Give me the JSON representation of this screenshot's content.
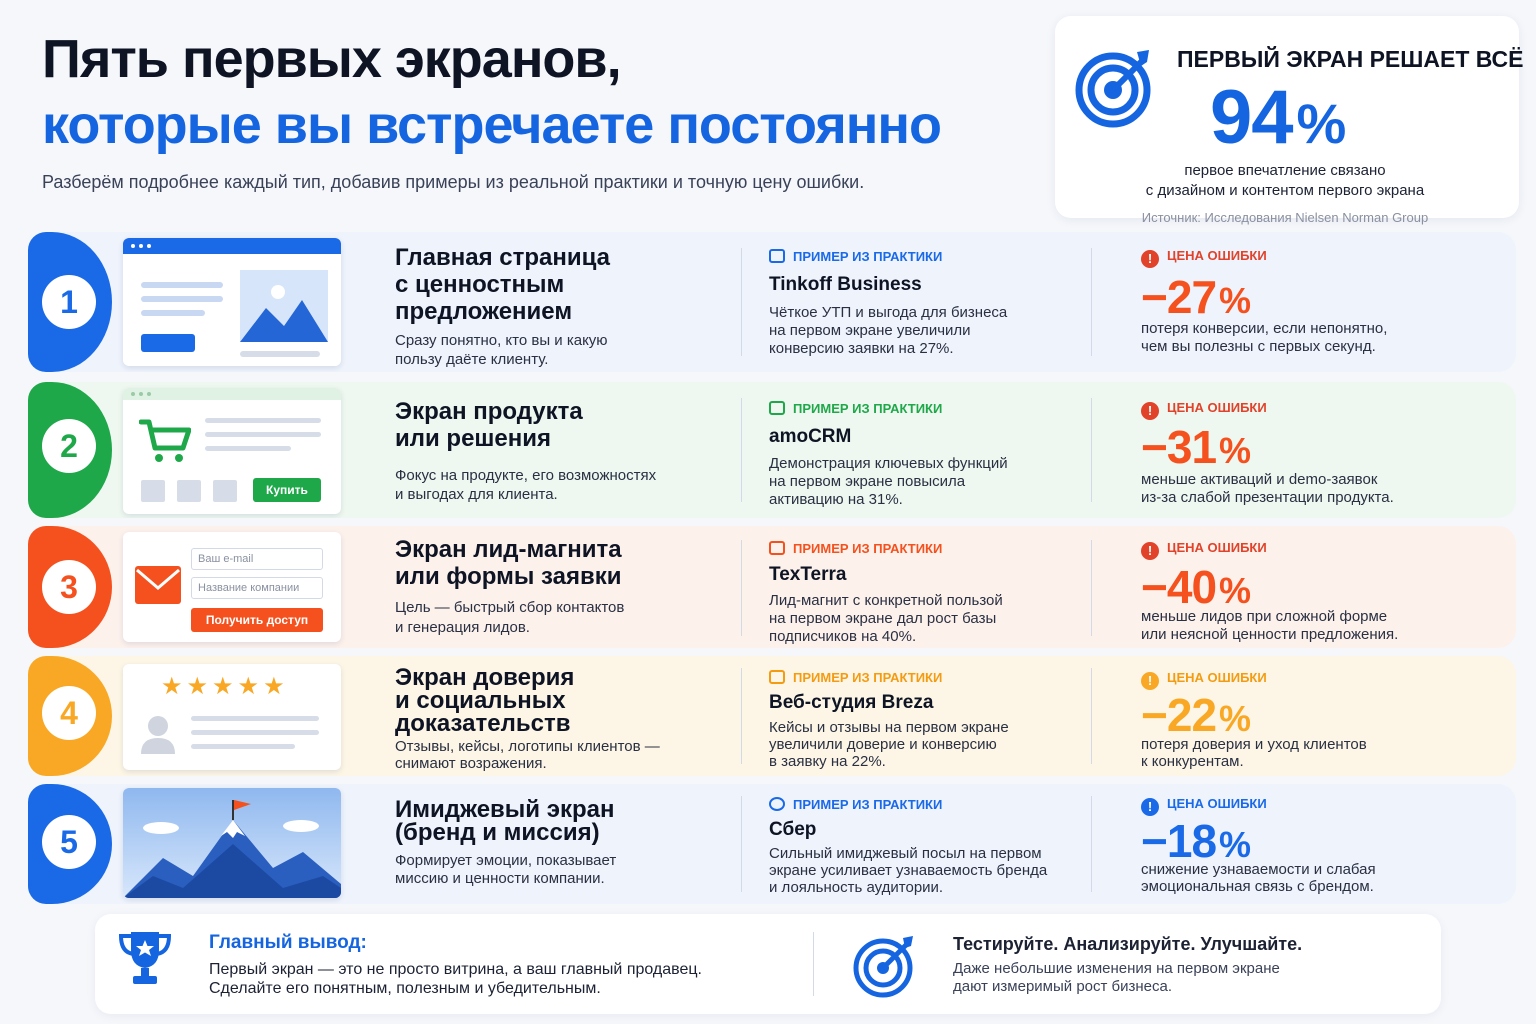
{
  "header": {
    "title_line1": "Пять первых экранов,",
    "title_line2": "которые вы встречаете постоянно",
    "subtitle": "Разберём подробнее каждый тип, добавив примеры из реальной практики и точную цену ошибки."
  },
  "stat": {
    "heading": "ПЕРВЫЙ ЭКРАН РЕШАЕТ ВСЁ",
    "value": "94",
    "unit": "%",
    "desc_line1": "первое впечатление связано",
    "desc_line2": "с дизайном и контентом первого экрана",
    "source": "Источник: Исследования Nielsen Norman Group",
    "icon": "target-icon"
  },
  "labels": {
    "example": "ПРИМЕР ИЗ ПРАКТИКИ",
    "error": "ЦЕНА ОШИБКИ"
  },
  "colors": {
    "blue": "#1a6ae8",
    "green": "#1fa84a",
    "orange": "#f4511e",
    "amber": "#f9a825",
    "red_value": "#f4511e"
  },
  "rows": [
    {
      "num": "1",
      "title_1": "Главная страница",
      "title_2": "с ценностным",
      "title_3": "предложением",
      "desc_1": "Сразу понятно, кто вы и какую",
      "desc_2": "пользу даёте клиенту.",
      "company": "Tinkoff Business",
      "ex_1": "Чёткое УТП и выгода для бизнеса",
      "ex_2": "на первом экране увеличили",
      "ex_3": "конверсию заявки на 27%.",
      "err_value": "−27",
      "err_1": "потеря конверсии, если непонятно,",
      "err_2": "чем вы полезны с первых секунд."
    },
    {
      "num": "2",
      "title_1": "Экран продукта",
      "title_2": "или решения",
      "desc_1": "Фокус на продукте, его возможностях",
      "desc_2": "и выгодах для клиента.",
      "buy": "Купить",
      "company": "amoCRM",
      "ex_1": "Демонстрация ключевых функций",
      "ex_2": "на первом экране повысила",
      "ex_3": "активацию на 31%.",
      "err_value": "−31",
      "err_1": "меньше активаций и demo-заявок",
      "err_2": "из-за слабой презентации продукта."
    },
    {
      "num": "3",
      "title_1": "Экран лид-магнита",
      "title_2": "или формы заявки",
      "desc_1": "Цель — быстрый сбор контактов",
      "desc_2": "и генерация лидов.",
      "email_ph": "Ваш e-mail",
      "company_ph": "Название компании",
      "cta": "Получить доступ",
      "company": "TexTerra",
      "ex_1": "Лид-магнит с конкретной пользой",
      "ex_2": "на первом экране дал рост базы",
      "ex_3": "подписчиков на 40%.",
      "err_value": "−40",
      "err_1": "меньше лидов при сложной форме",
      "err_2": "или неясной ценности предложения."
    },
    {
      "num": "4",
      "title_1": "Экран доверия",
      "title_2": "и социальных",
      "title_3": "доказательств",
      "desc_1": "Отзывы, кейсы, логотипы клиентов —",
      "desc_2": "снимают возражения.",
      "stars": "★★★★★",
      "company": "Веб-студия Breza",
      "ex_1": "Кейсы и отзывы на первом экране",
      "ex_2": "увеличили доверие и конверсию",
      "ex_3": "в заявку на 22%.",
      "err_value": "−22",
      "err_1": "потеря доверия и уход клиентов",
      "err_2": "к конкурентам."
    },
    {
      "num": "5",
      "title_1": "Имиджевый экран",
      "title_2": "(бренд и миссия)",
      "desc_1": "Формирует эмоции, показывает",
      "desc_2": "миссию и ценности компании.",
      "company": "Сбер",
      "ex_1": "Сильный имиджевый посыл на первом",
      "ex_2": "экране усиливает узнаваемость бренда",
      "ex_3": "и лояльность аудитории.",
      "err_value": "−18",
      "err_1": "снижение узнаваемости и слабая",
      "err_2": "эмоциональная связь с брендом."
    }
  ],
  "pct": "%",
  "footer": {
    "title": "Главный вывод:",
    "line1": "Первый экран — это не просто витрина, а ваш главный продавец.",
    "line2": "Сделайте его понятным, полезным и убедительным.",
    "title2": "Тестируйте. Анализируйте. Улучшайте.",
    "line3": "Даже небольшие изменения на первом экране",
    "line4": "дают измеримый рост бизнеса."
  }
}
